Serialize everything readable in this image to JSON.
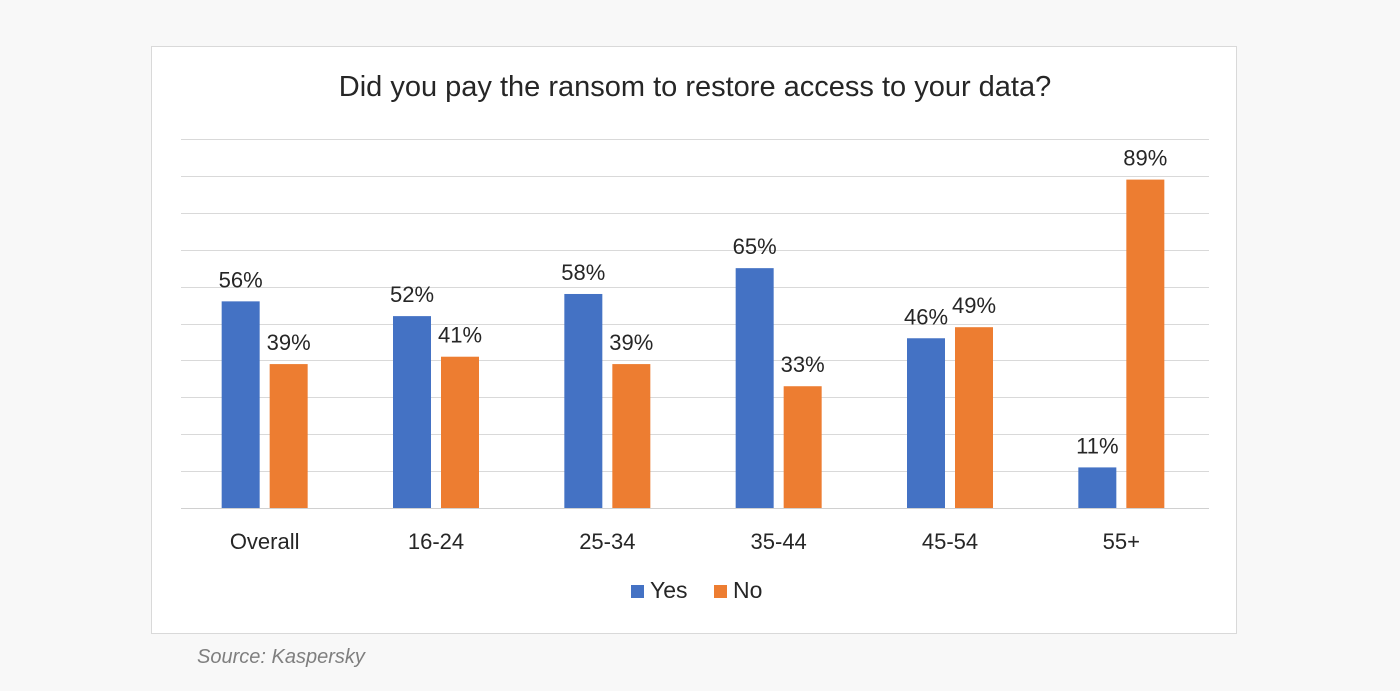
{
  "chart_data": {
    "type": "bar",
    "title": "Did you pay the ransom to restore access to your data?",
    "xlabel": "",
    "ylabel": "",
    "ylim": [
      0,
      100
    ],
    "grid": true,
    "legend_position": "bottom",
    "categories": [
      "Overall",
      "16-24",
      "25-34",
      "35-44",
      "45-54",
      "55+"
    ],
    "series": [
      {
        "name": "Yes",
        "color": "#4472c4",
        "values": [
          56,
          52,
          58,
          65,
          46,
          11
        ],
        "labels": [
          "56%",
          "52%",
          "58%",
          "65%",
          "46%",
          "11%"
        ]
      },
      {
        "name": "No",
        "color": "#ed7d31",
        "values": [
          39,
          41,
          39,
          33,
          49,
          89
        ],
        "labels": [
          "39%",
          "41%",
          "39%",
          "33%",
          "49%",
          "89%"
        ]
      }
    ]
  },
  "source": "Source: Kaspersky"
}
